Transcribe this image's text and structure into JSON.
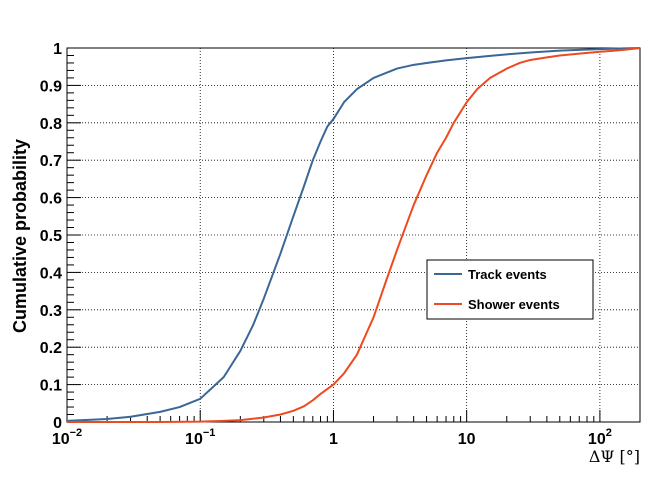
{
  "chart_data": {
    "type": "line",
    "title": "",
    "xlabel": "ΔΨ [°]",
    "ylabel": "Cumulative probability",
    "xscale": "log",
    "xlim": [
      0.01,
      200
    ],
    "ylim": [
      0,
      1
    ],
    "grid": true,
    "legend_position": "center-right",
    "xtick_labels": [
      {
        "value": 0.01,
        "base": "10",
        "exp": "−2"
      },
      {
        "value": 0.1,
        "base": "10",
        "exp": "−1"
      },
      {
        "value": 1,
        "base": "1",
        "exp": ""
      },
      {
        "value": 10,
        "base": "10",
        "exp": ""
      },
      {
        "value": 100,
        "base": "10",
        "exp": "2"
      }
    ],
    "ytick_labels": [
      "0",
      "0.1",
      "0.2",
      "0.3",
      "0.4",
      "0.5",
      "0.6",
      "0.7",
      "0.8",
      "0.9",
      "1"
    ],
    "series": [
      {
        "name": "Track events",
        "color": "#3a6796",
        "x": [
          0.01,
          0.02,
          0.03,
          0.05,
          0.07,
          0.1,
          0.15,
          0.2,
          0.25,
          0.3,
          0.4,
          0.5,
          0.6,
          0.7,
          0.8,
          0.9,
          1,
          1.2,
          1.5,
          2,
          3,
          4,
          5,
          7,
          10,
          15,
          20,
          30,
          50,
          70,
          100,
          150,
          200
        ],
        "values": [
          0.003,
          0.008,
          0.014,
          0.027,
          0.04,
          0.062,
          0.12,
          0.19,
          0.26,
          0.33,
          0.45,
          0.55,
          0.63,
          0.7,
          0.75,
          0.79,
          0.81,
          0.855,
          0.89,
          0.92,
          0.945,
          0.955,
          0.96,
          0.967,
          0.973,
          0.979,
          0.983,
          0.988,
          0.993,
          0.995,
          0.997,
          0.999,
          1.0
        ]
      },
      {
        "name": "Shower events",
        "color": "#ee4a20",
        "x": [
          0.01,
          0.05,
          0.1,
          0.15,
          0.2,
          0.3,
          0.4,
          0.5,
          0.6,
          0.7,
          0.8,
          1,
          1.2,
          1.5,
          2,
          2.5,
          3,
          4,
          5,
          6,
          7,
          8,
          10,
          12,
          15,
          20,
          25,
          30,
          40,
          50,
          70,
          100,
          130,
          150,
          200
        ],
        "values": [
          0.0,
          0.0,
          0.001,
          0.003,
          0.005,
          0.012,
          0.02,
          0.03,
          0.042,
          0.058,
          0.075,
          0.1,
          0.13,
          0.18,
          0.28,
          0.38,
          0.46,
          0.58,
          0.66,
          0.72,
          0.76,
          0.8,
          0.855,
          0.89,
          0.92,
          0.945,
          0.96,
          0.968,
          0.975,
          0.98,
          0.985,
          0.99,
          0.993,
          0.995,
          1.0
        ]
      }
    ]
  }
}
